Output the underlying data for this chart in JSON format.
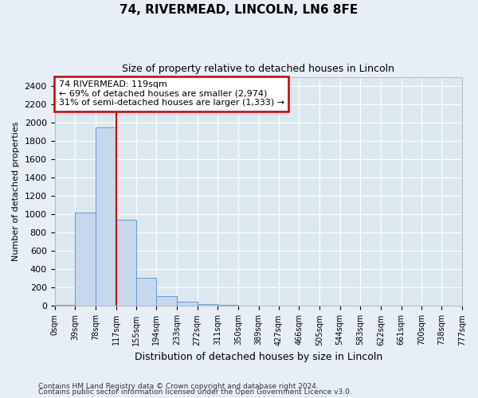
{
  "title": "74, RIVERMEAD, LINCOLN, LN6 8FE",
  "subtitle": "Size of property relative to detached houses in Lincoln",
  "xlabel": "Distribution of detached houses by size in Lincoln",
  "ylabel": "Number of detached properties",
  "bar_edges": [
    0,
    39,
    78,
    117,
    155,
    194,
    233,
    272,
    311,
    350,
    389,
    427,
    466,
    505,
    544,
    583,
    622,
    661,
    700,
    738,
    777
  ],
  "bar_heights": [
    15,
    1020,
    1950,
    940,
    310,
    110,
    45,
    25,
    15,
    5,
    5,
    0,
    0,
    0,
    0,
    0,
    0,
    0,
    0,
    0
  ],
  "bar_color": "#c5d8ee",
  "bar_edge_color": "#6699cc",
  "red_line_x": 117,
  "ylim": [
    0,
    2500
  ],
  "yticks": [
    0,
    200,
    400,
    600,
    800,
    1000,
    1200,
    1400,
    1600,
    1800,
    2000,
    2200,
    2400
  ],
  "annotation_line1": "74 RIVERMEAD: 119sqm",
  "annotation_line2": "← 69% of detached houses are smaller (2,974)",
  "annotation_line3": "31% of semi-detached houses are larger (1,333) →",
  "annotation_box_color": "#ffffff",
  "annotation_box_edge": "#cc0000",
  "footnote1": "Contains HM Land Registry data © Crown copyright and database right 2024.",
  "footnote2": "Contains public sector information licensed under the Open Government Licence v3.0.",
  "bg_color": "#e8eef5",
  "plot_bg_color": "#dce8f0",
  "grid_color": "#ffffff",
  "title_fontsize": 11,
  "subtitle_fontsize": 9
}
